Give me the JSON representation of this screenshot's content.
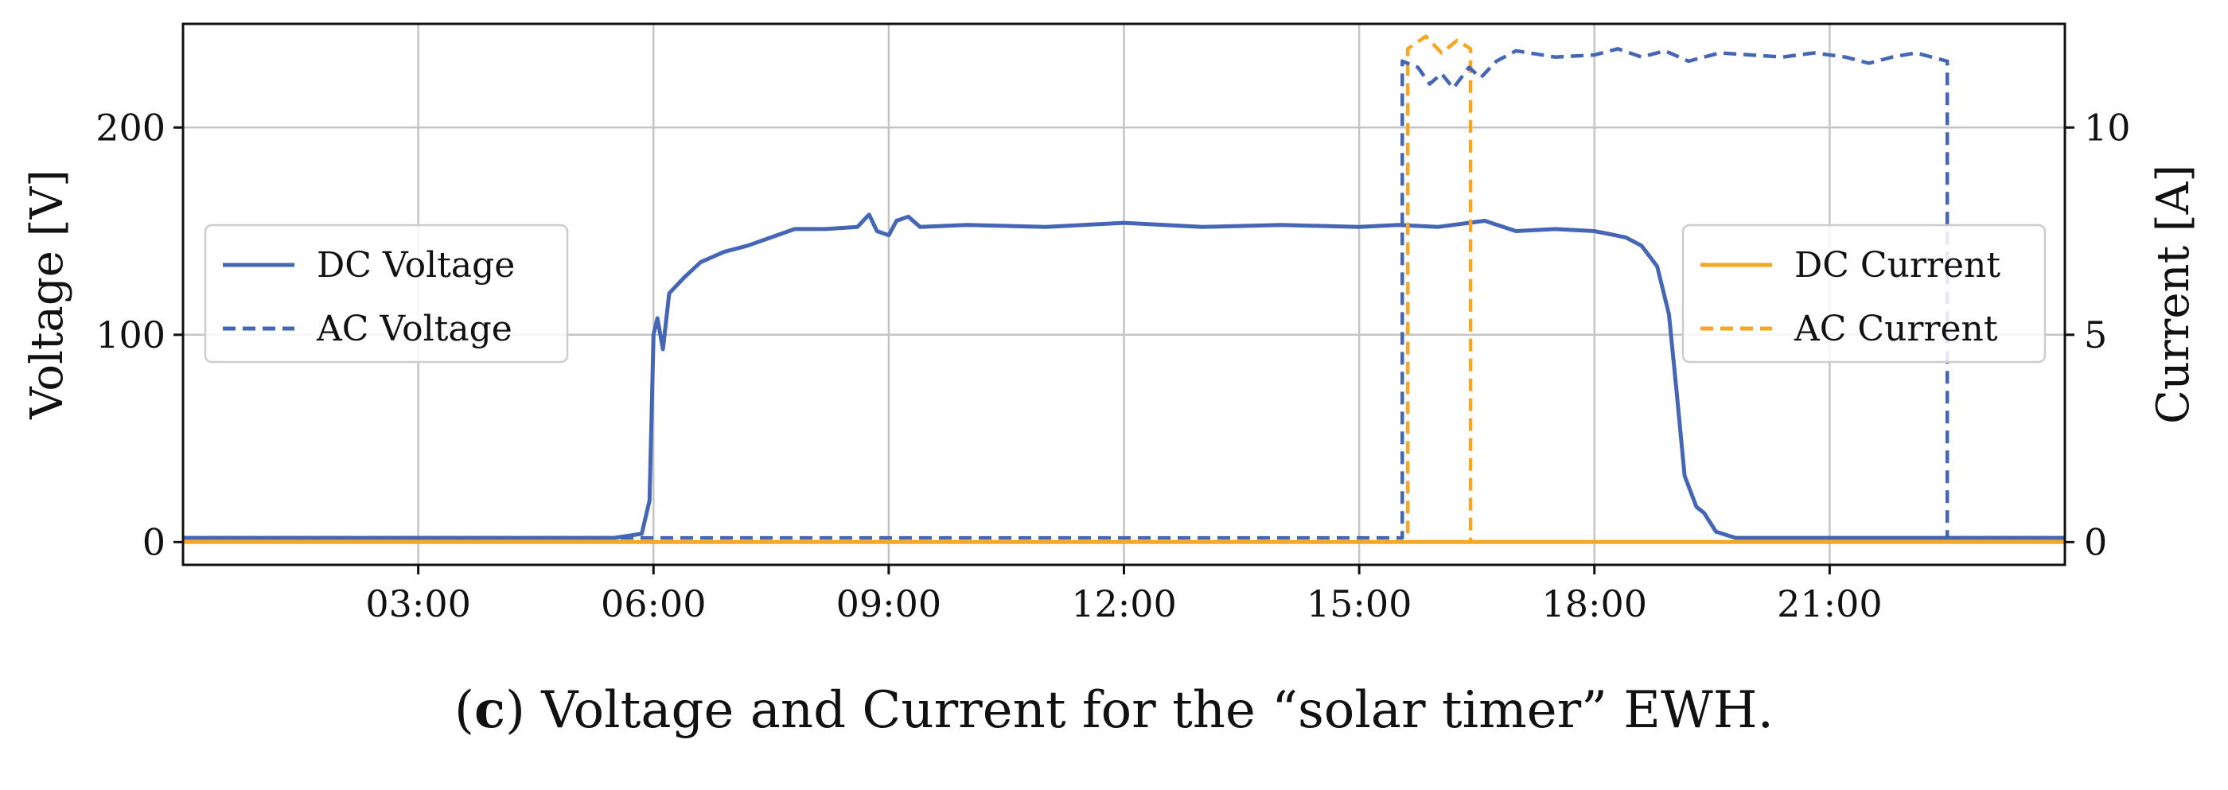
{
  "caption": {
    "label": "(c)",
    "text": "Voltage and Current for the “solar timer” EWH."
  },
  "chart_data": {
    "type": "line",
    "xlabel": "",
    "ylabel": "Voltage [V]",
    "y2label": "Current [A]",
    "xlim": [
      0.0,
      24.0
    ],
    "ylim": [
      -11,
      250
    ],
    "y2lim": [
      -0.55,
      12.5
    ],
    "x_ticks": [
      3,
      6,
      9,
      12,
      15,
      18,
      21
    ],
    "x_tick_labels": [
      "03:00",
      "06:00",
      "09:00",
      "12:00",
      "15:00",
      "18:00",
      "21:00"
    ],
    "y_ticks": [
      0,
      100,
      200
    ],
    "y_tick_labels": [
      "0",
      "100",
      "200"
    ],
    "y2_ticks": [
      0,
      5,
      10
    ],
    "y2_tick_labels": [
      "0",
      "5",
      "10"
    ],
    "grid": true,
    "colors": {
      "voltage": "#4466b5",
      "current": "#f5a623"
    },
    "legend_left": {
      "placement": "center-left",
      "entries": [
        "DC Voltage",
        "AC Voltage"
      ]
    },
    "legend_right": {
      "placement": "center-right",
      "entries": [
        "DC Current",
        "AC Current"
      ]
    },
    "series": [
      {
        "name": "DC Voltage",
        "axis": "left",
        "style": "solid",
        "color": "#4466b5",
        "points": [
          [
            0,
            2
          ],
          [
            5.5,
            2
          ],
          [
            5.85,
            4
          ],
          [
            5.95,
            20
          ],
          [
            6.0,
            100
          ],
          [
            6.05,
            108
          ],
          [
            6.12,
            93
          ],
          [
            6.2,
            120
          ],
          [
            6.4,
            128
          ],
          [
            6.6,
            135
          ],
          [
            6.9,
            140
          ],
          [
            7.2,
            143
          ],
          [
            7.5,
            147
          ],
          [
            7.8,
            151
          ],
          [
            8.2,
            151
          ],
          [
            8.6,
            152
          ],
          [
            8.75,
            158
          ],
          [
            8.85,
            150
          ],
          [
            9.0,
            148
          ],
          [
            9.1,
            155
          ],
          [
            9.25,
            157
          ],
          [
            9.4,
            152
          ],
          [
            10,
            153
          ],
          [
            11,
            152
          ],
          [
            12,
            154
          ],
          [
            13,
            152
          ],
          [
            14,
            153
          ],
          [
            15,
            152
          ],
          [
            15.5,
            153
          ],
          [
            16,
            152
          ],
          [
            16.6,
            155
          ],
          [
            17,
            150
          ],
          [
            17.5,
            151
          ],
          [
            18,
            150
          ],
          [
            18.4,
            147
          ],
          [
            18.6,
            143
          ],
          [
            18.8,
            133
          ],
          [
            18.95,
            110
          ],
          [
            19.05,
            72
          ],
          [
            19.15,
            32
          ],
          [
            19.3,
            17
          ],
          [
            19.4,
            14
          ],
          [
            19.55,
            5
          ],
          [
            19.8,
            2
          ],
          [
            24,
            2
          ]
        ]
      },
      {
        "name": "AC Voltage",
        "axis": "left",
        "style": "dashed",
        "color": "#4466b5",
        "points": [
          [
            0,
            2
          ],
          [
            15.55,
            2
          ],
          [
            15.55,
            232
          ],
          [
            15.75,
            229
          ],
          [
            15.9,
            221
          ],
          [
            16.05,
            226
          ],
          [
            16.2,
            219
          ],
          [
            16.4,
            229
          ],
          [
            16.55,
            224
          ],
          [
            16.75,
            232
          ],
          [
            17,
            237
          ],
          [
            17.5,
            234
          ],
          [
            18,
            235
          ],
          [
            18.3,
            238
          ],
          [
            18.6,
            234
          ],
          [
            18.9,
            237
          ],
          [
            19.2,
            232
          ],
          [
            19.6,
            236
          ],
          [
            20,
            235
          ],
          [
            20.4,
            234
          ],
          [
            20.8,
            236
          ],
          [
            21.2,
            234
          ],
          [
            21.5,
            231
          ],
          [
            21.8,
            234
          ],
          [
            22.1,
            236
          ],
          [
            22.5,
            232
          ],
          [
            22.5,
            2
          ],
          [
            24,
            2
          ]
        ]
      },
      {
        "name": "DC Current",
        "axis": "right",
        "style": "solid",
        "color": "#f5a623",
        "points": [
          [
            0,
            0
          ],
          [
            24,
            0
          ]
        ]
      },
      {
        "name": "AC Current",
        "axis": "right",
        "style": "dashed",
        "color": "#f5a623",
        "points": [
          [
            0,
            0
          ],
          [
            15.62,
            0
          ],
          [
            15.62,
            11.9
          ],
          [
            15.85,
            12.2
          ],
          [
            16.05,
            11.8
          ],
          [
            16.25,
            12.1
          ],
          [
            16.42,
            11.9
          ],
          [
            16.42,
            0
          ],
          [
            24,
            0
          ]
        ]
      }
    ]
  }
}
